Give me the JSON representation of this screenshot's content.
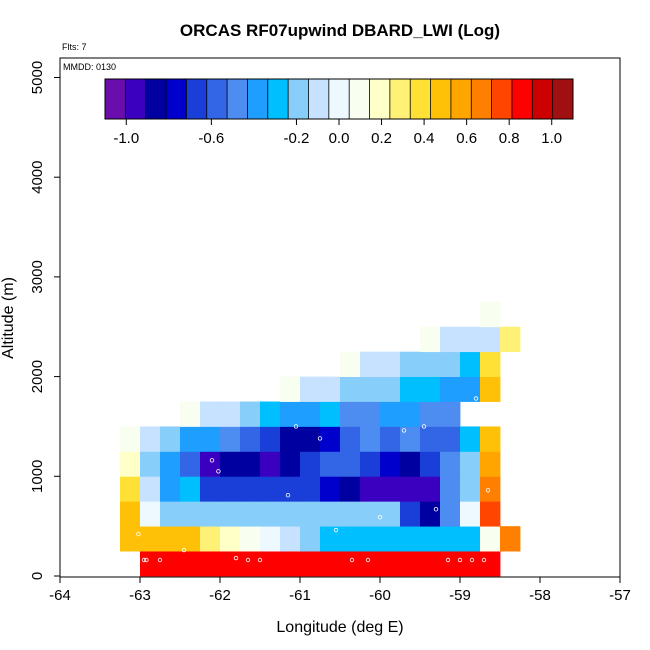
{
  "chart_data": {
    "type": "heatmap",
    "title": "ORCAS RF07upwind DBARD_LWI (Log)",
    "flts_label": "Flts: 7",
    "mmdd_label": "MMDD: 0130",
    "xlabel": "Longitude (deg E)",
    "ylabel": "Altitude (m)",
    "xlim": [
      -64,
      -57
    ],
    "ylim": [
      0,
      5200
    ],
    "xticks": [
      -64,
      -63,
      -62,
      -61,
      -60,
      -59,
      -58,
      -57
    ],
    "xtick_labels": [
      "-64",
      "-63",
      "-62",
      "-61",
      "-60",
      "-59",
      "-58",
      "-57"
    ],
    "yticks": [
      0,
      1000,
      2000,
      3000,
      4000,
      5000
    ],
    "ytick_labels": [
      "0",
      "1000",
      "2000",
      "3000",
      "4000",
      "5000"
    ],
    "cell_width_deg": 0.25,
    "cell_height_m": 250,
    "colorbar": {
      "min": -1.1,
      "max": 1.1,
      "tick_values": [
        -1.0,
        -0.6,
        -0.2,
        0.0,
        0.2,
        0.4,
        0.6,
        0.8,
        1.0
      ],
      "tick_labels": [
        "-1.0",
        "-0.6",
        "-0.2",
        "0.0",
        "0.2",
        "0.4",
        "0.6",
        "0.8",
        "1.0"
      ],
      "colors": [
        "#6a0dad",
        "#3b00bf",
        "#0000a0",
        "#0000cd",
        "#1a3fd9",
        "#3366e6",
        "#4d8cf0",
        "#1e9fff",
        "#00bfff",
        "#87cefa",
        "#c6e2ff",
        "#eef8ff",
        "#f8fff0",
        "#ffffc8",
        "#fff176",
        "#ffe135",
        "#ffc107",
        "#ffa500",
        "#ff7f00",
        "#ff4500",
        "#ff0000",
        "#cc0000",
        "#a01010"
      ]
    },
    "rows": [
      {
        "alt": 0,
        "lon_start": -63.0,
        "values": [
          0.85,
          0.85,
          0.85,
          0.85,
          0.85,
          0.85,
          0.85,
          0.85,
          0.85,
          0.85,
          0.85,
          0.85,
          0.85,
          0.85,
          0.85,
          0.85,
          0.85,
          0.85
        ]
      },
      {
        "alt": 250,
        "lon_start": -63.25,
        "values": [
          0.5,
          0.5,
          0.5,
          0.45,
          0.3,
          0.2,
          0.05,
          0.0,
          -0.1,
          -0.15,
          -0.3,
          -0.3,
          -0.3,
          -0.3,
          -0.3,
          -0.3,
          -0.3,
          -0.3,
          0.05,
          0.7
        ]
      },
      {
        "alt": 500,
        "lon_start": -63.25,
        "values": [
          0.45,
          0.02,
          -0.15,
          -0.15,
          -0.15,
          -0.15,
          -0.15,
          -0.15,
          -0.15,
          -0.15,
          -0.2,
          -0.15,
          -0.15,
          -0.15,
          -0.7,
          -0.9,
          -0.5,
          0.02,
          0.75
        ]
      },
      {
        "alt": 750,
        "lon_start": -63.25,
        "values": [
          0.35,
          -0.05,
          -0.4,
          -0.25,
          -0.65,
          -0.65,
          -0.65,
          -0.65,
          -0.65,
          -0.65,
          -0.75,
          -0.85,
          -0.95,
          -0.95,
          -0.95,
          -0.95,
          -0.5,
          -0.2,
          0.65
        ]
      },
      {
        "alt": 1000,
        "lon_start": -63.25,
        "values": [
          0.2,
          -0.2,
          -0.4,
          -0.55,
          -0.95,
          -0.9,
          -0.85,
          -0.95,
          -0.9,
          -0.65,
          -0.6,
          -0.6,
          -0.7,
          -0.75,
          -0.85,
          -0.7,
          -0.45,
          -0.2,
          0.55
        ]
      },
      {
        "alt": 1250,
        "lon_start": -63.25,
        "values": [
          0.1,
          -0.1,
          -0.2,
          -0.35,
          -0.4,
          -0.5,
          -0.55,
          -0.65,
          -0.85,
          -0.9,
          -0.75,
          -0.55,
          -0.5,
          -0.55,
          -0.5,
          -0.55,
          -0.55,
          -0.3,
          0.5
        ]
      },
      {
        "alt": 1500,
        "lon_start": -62.5,
        "values": [
          0.05,
          -0.05,
          -0.1,
          -0.15,
          -0.3,
          -0.35,
          -0.4,
          -0.3,
          -0.5,
          -0.45,
          -0.4,
          -0.35,
          -0.45,
          -0.5
        ]
      },
      {
        "alt": 1750,
        "lon_start": -61.25,
        "values": [
          0.05,
          -0.05,
          -0.1,
          -0.15,
          -0.15,
          -0.2,
          -0.25,
          -0.3,
          -0.35,
          -0.4,
          0.45
        ]
      },
      {
        "alt": 2000,
        "lon_start": -60.5,
        "values": [
          0.05,
          -0.05,
          -0.1,
          -0.15,
          -0.2,
          -0.2,
          -0.3,
          0.4
        ]
      },
      {
        "alt": 2250,
        "lon_start": -59.5,
        "values": [
          0.05,
          -0.05,
          -0.05,
          -0.1,
          0.3
        ]
      },
      {
        "alt": 2500,
        "lon_start": -58.75,
        "values": [
          0.05
        ]
      }
    ],
    "flight_points": [
      [
        -62.95,
        160
      ],
      [
        -62.92,
        160
      ],
      [
        -62.75,
        160
      ],
      [
        -61.8,
        180
      ],
      [
        -61.65,
        160
      ],
      [
        -61.5,
        160
      ],
      [
        -60.35,
        160
      ],
      [
        -60.15,
        160
      ],
      [
        -59.15,
        160
      ],
      [
        -59.0,
        160
      ],
      [
        -58.85,
        160
      ],
      [
        -58.7,
        160
      ],
      [
        -63.02,
        420
      ],
      [
        -62.45,
        260
      ],
      [
        -60.55,
        460
      ],
      [
        -60.0,
        590
      ],
      [
        -59.3,
        670
      ],
      [
        -58.65,
        860
      ],
      [
        -62.02,
        1050
      ],
      [
        -61.15,
        810
      ],
      [
        -62.1,
        1160
      ],
      [
        -61.05,
        1500
      ],
      [
        -60.75,
        1380
      ],
      [
        -59.7,
        1460
      ],
      [
        -59.45,
        1500
      ],
      [
        -58.8,
        1780
      ]
    ]
  }
}
